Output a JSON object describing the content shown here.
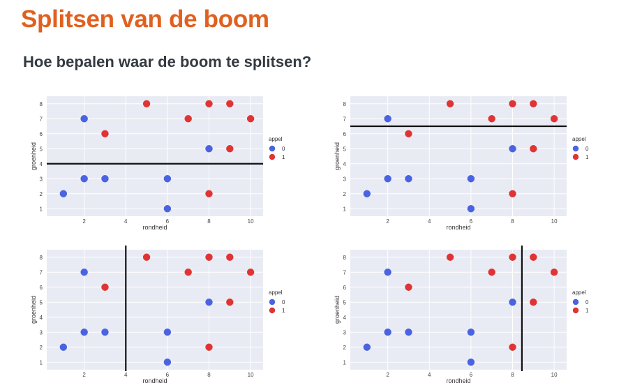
{
  "page": {
    "title": "Splitsen van de boom",
    "subtitle": "Hoe bepalen waar de boom te splitsen?"
  },
  "colors": {
    "class_0": "#4a63e0",
    "class_1": "#e03434",
    "plot_bg": "#e9ebf4",
    "split_line": "#111111"
  },
  "chart_data": [
    {
      "type": "scatter",
      "xlabel": "rondheid",
      "ylabel": "groenheid",
      "xlim": [
        0.2,
        10.6
      ],
      "ylim": [
        0.5,
        8.5
      ],
      "xticks": [
        2,
        4,
        6,
        8,
        10
      ],
      "yticks": [
        1,
        2,
        3,
        4,
        5,
        6,
        7,
        8
      ],
      "grid": true,
      "legend_position": "right",
      "legend_title": "appel",
      "series": [
        {
          "name": "0",
          "color": "#4a63e0",
          "points": [
            [
              1,
              2
            ],
            [
              2,
              3
            ],
            [
              2,
              7
            ],
            [
              3,
              3
            ],
            [
              6,
              1
            ],
            [
              6,
              3
            ],
            [
              8,
              5
            ]
          ]
        },
        {
          "name": "1",
          "color": "#e03434",
          "points": [
            [
              3,
              6
            ],
            [
              5,
              8
            ],
            [
              7,
              7
            ],
            [
              8,
              2
            ],
            [
              8,
              8
            ],
            [
              9,
              5
            ],
            [
              9,
              8
            ],
            [
              10,
              7
            ]
          ]
        }
      ],
      "split": {
        "orientation": "horizontal",
        "value": 4
      }
    },
    {
      "type": "scatter",
      "xlabel": "rondheid",
      "ylabel": "groenheid",
      "xlim": [
        0.2,
        10.6
      ],
      "ylim": [
        0.5,
        8.5
      ],
      "xticks": [
        2,
        4,
        6,
        8,
        10
      ],
      "yticks": [
        1,
        2,
        3,
        4,
        5,
        6,
        7,
        8
      ],
      "grid": true,
      "legend_position": "right",
      "legend_title": "appel",
      "series": [
        {
          "name": "0",
          "color": "#4a63e0",
          "points": [
            [
              1,
              2
            ],
            [
              2,
              3
            ],
            [
              2,
              7
            ],
            [
              3,
              3
            ],
            [
              6,
              1
            ],
            [
              6,
              3
            ],
            [
              8,
              5
            ]
          ]
        },
        {
          "name": "1",
          "color": "#e03434",
          "points": [
            [
              3,
              6
            ],
            [
              5,
              8
            ],
            [
              7,
              7
            ],
            [
              8,
              2
            ],
            [
              8,
              8
            ],
            [
              9,
              5
            ],
            [
              9,
              8
            ],
            [
              10,
              7
            ]
          ]
        }
      ],
      "split": {
        "orientation": "horizontal",
        "value": 6.5
      }
    },
    {
      "type": "scatter",
      "xlabel": "rondheid",
      "ylabel": "groenheid",
      "xlim": [
        0.2,
        10.6
      ],
      "ylim": [
        0.5,
        8.5
      ],
      "xticks": [
        2,
        4,
        6,
        8,
        10
      ],
      "yticks": [
        1,
        2,
        3,
        4,
        5,
        6,
        7,
        8
      ],
      "grid": true,
      "legend_position": "right",
      "legend_title": "appel",
      "series": [
        {
          "name": "0",
          "color": "#4a63e0",
          "points": [
            [
              1,
              2
            ],
            [
              2,
              3
            ],
            [
              2,
              7
            ],
            [
              3,
              3
            ],
            [
              6,
              1
            ],
            [
              6,
              3
            ],
            [
              8,
              5
            ]
          ]
        },
        {
          "name": "1",
          "color": "#e03434",
          "points": [
            [
              3,
              6
            ],
            [
              5,
              8
            ],
            [
              7,
              7
            ],
            [
              8,
              2
            ],
            [
              8,
              8
            ],
            [
              9,
              5
            ],
            [
              9,
              8
            ],
            [
              10,
              7
            ]
          ]
        }
      ],
      "split": {
        "orientation": "vertical",
        "value": 4
      }
    },
    {
      "type": "scatter",
      "xlabel": "rondheid",
      "ylabel": "groenheid",
      "xlim": [
        0.2,
        10.6
      ],
      "ylim": [
        0.5,
        8.5
      ],
      "xticks": [
        2,
        4,
        6,
        8,
        10
      ],
      "yticks": [
        1,
        2,
        3,
        4,
        5,
        6,
        7,
        8
      ],
      "grid": true,
      "legend_position": "right",
      "legend_title": "appel",
      "series": [
        {
          "name": "0",
          "color": "#4a63e0",
          "points": [
            [
              1,
              2
            ],
            [
              2,
              3
            ],
            [
              2,
              7
            ],
            [
              3,
              3
            ],
            [
              6,
              1
            ],
            [
              6,
              3
            ],
            [
              8,
              5
            ]
          ]
        },
        {
          "name": "1",
          "color": "#e03434",
          "points": [
            [
              3,
              6
            ],
            [
              5,
              8
            ],
            [
              7,
              7
            ],
            [
              8,
              2
            ],
            [
              8,
              8
            ],
            [
              9,
              5
            ],
            [
              9,
              8
            ],
            [
              10,
              7
            ]
          ]
        }
      ],
      "split": {
        "orientation": "vertical",
        "value": 8.45
      }
    }
  ]
}
